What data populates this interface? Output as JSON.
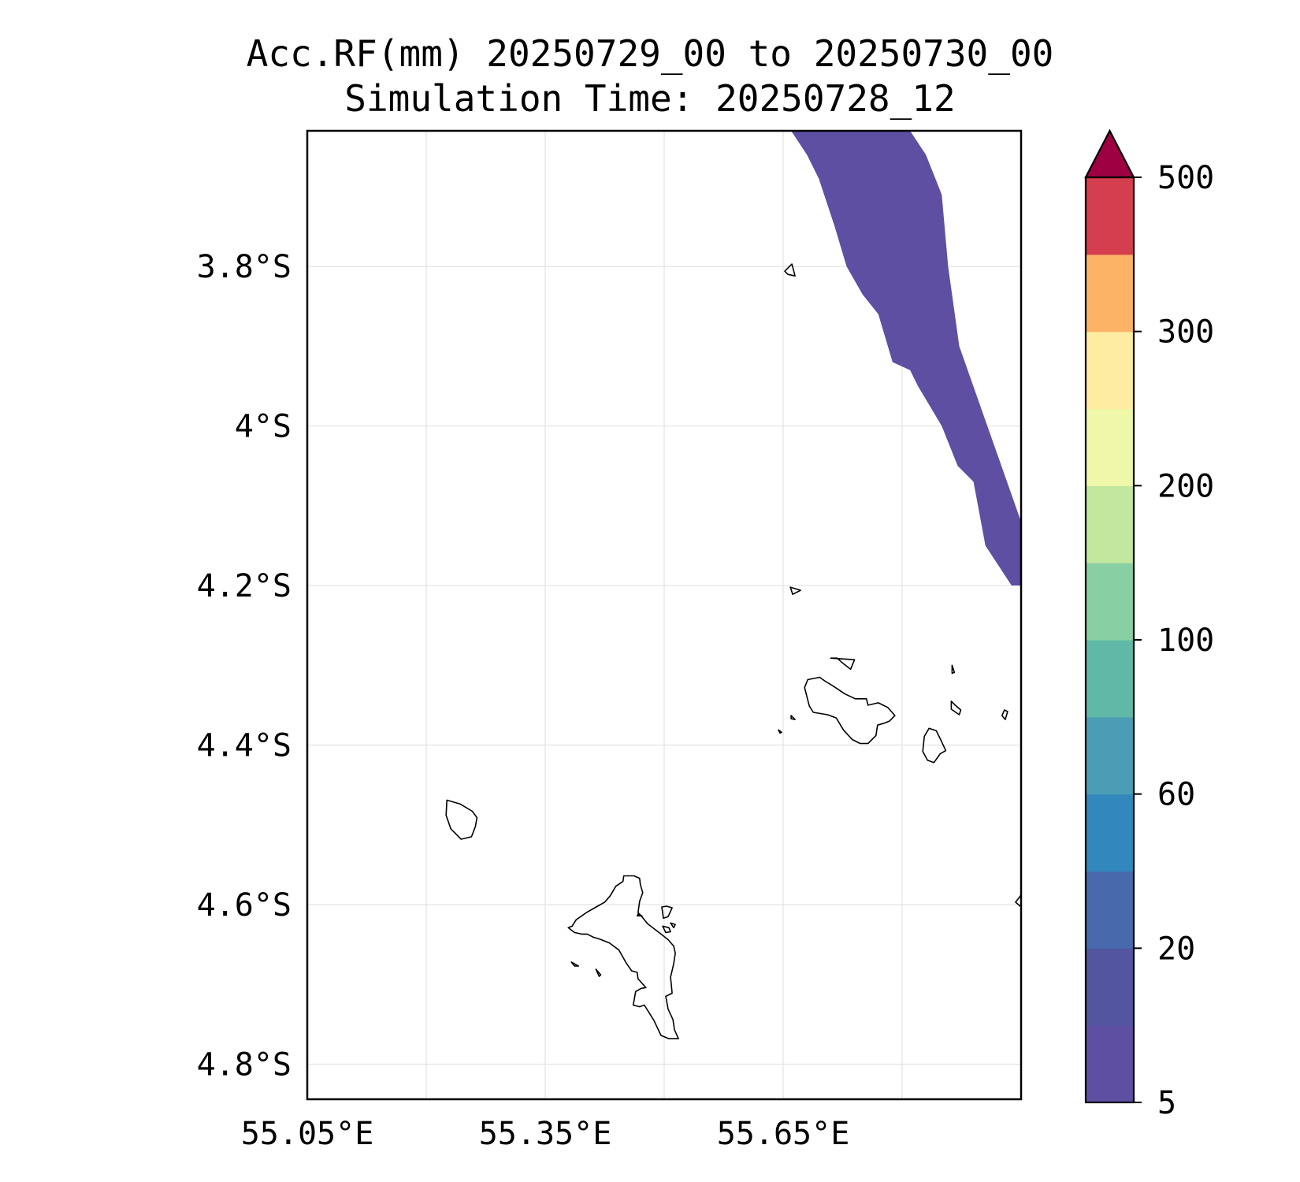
{
  "title": {
    "line1": "Acc.RF(mm) 20250729_00 to 20250730_00",
    "line2": "Simulation Time: 20250728_12"
  },
  "map": {
    "lon_range": [
      55.05,
      55.95
    ],
    "lat_range": [
      -4.844,
      -3.63
    ],
    "lat_ticks": [
      {
        "value": -3.8,
        "label": "3.8°S"
      },
      {
        "value": -4.0,
        "label": "4°S"
      },
      {
        "value": -4.2,
        "label": "4.2°S"
      },
      {
        "value": -4.4,
        "label": "4.4°S"
      },
      {
        "value": -4.6,
        "label": "4.6°S"
      },
      {
        "value": -4.8,
        "label": "4.8°S"
      }
    ],
    "lon_ticks": [
      {
        "value": 55.05,
        "label": "55.05°E"
      },
      {
        "value": 55.35,
        "label": "55.35°E"
      },
      {
        "value": 55.65,
        "label": "55.65°E"
      }
    ],
    "lon_grid": [
      55.05,
      55.2,
      55.35,
      55.5,
      55.65,
      55.8,
      55.95
    ],
    "lat_grid": [
      -3.8,
      -4.0,
      -4.2,
      -4.4,
      -4.6,
      -4.8
    ],
    "grid": true,
    "rain_area": {
      "level": "5-20 mm",
      "color": "#5e4fa2",
      "east_edge": [
        [
          55.66,
          -3.63
        ],
        [
          55.81,
          -3.63
        ],
        [
          55.83,
          -3.66
        ],
        [
          55.85,
          -3.71
        ],
        [
          55.858,
          -3.8
        ],
        [
          55.872,
          -3.9
        ],
        [
          55.95,
          -4.12
        ],
        [
          55.95,
          -4.2
        ],
        [
          55.938,
          -4.2
        ],
        [
          55.905,
          -4.15
        ],
        [
          55.89,
          -4.07
        ],
        [
          55.87,
          -4.05
        ],
        [
          55.85,
          -4.0
        ],
        [
          55.82,
          -3.95
        ],
        [
          55.81,
          -3.93
        ]
      ],
      "west_edge": [
        [
          55.66,
          -3.63
        ],
        [
          55.68,
          -3.66
        ],
        [
          55.695,
          -3.69
        ],
        [
          55.715,
          -3.75
        ],
        [
          55.73,
          -3.8
        ],
        [
          55.75,
          -3.835
        ],
        [
          55.77,
          -3.86
        ],
        [
          55.788,
          -3.92
        ],
        [
          55.81,
          -3.93
        ]
      ]
    },
    "coastlines": [
      {
        "name": "Mahe",
        "points": [
          [
            55.449,
            -4.564
          ],
          [
            55.462,
            -4.564
          ],
          [
            55.469,
            -4.567
          ],
          [
            55.47,
            -4.575
          ],
          [
            55.473,
            -4.585
          ],
          [
            55.469,
            -4.596
          ],
          [
            55.467,
            -4.61
          ],
          [
            55.471,
            -4.614
          ],
          [
            55.479,
            -4.624
          ],
          [
            55.496,
            -4.637
          ],
          [
            55.505,
            -4.644
          ],
          [
            55.512,
            -4.652
          ],
          [
            55.514,
            -4.661
          ],
          [
            55.512,
            -4.674
          ],
          [
            55.508,
            -4.691
          ],
          [
            55.51,
            -4.711
          ],
          [
            55.502,
            -4.715
          ],
          [
            55.505,
            -4.731
          ],
          [
            55.511,
            -4.744
          ],
          [
            55.513,
            -4.757
          ],
          [
            55.518,
            -4.768
          ],
          [
            55.506,
            -4.768
          ],
          [
            55.496,
            -4.764
          ],
          [
            55.487,
            -4.745
          ],
          [
            55.475,
            -4.726
          ],
          [
            55.469,
            -4.728
          ],
          [
            55.461,
            -4.726
          ],
          [
            55.464,
            -4.709
          ],
          [
            55.471,
            -4.705
          ],
          [
            55.477,
            -4.704
          ],
          [
            55.467,
            -4.693
          ],
          [
            55.466,
            -4.685
          ],
          [
            55.459,
            -4.683
          ],
          [
            55.452,
            -4.673
          ],
          [
            55.443,
            -4.657
          ],
          [
            55.431,
            -4.648
          ],
          [
            55.418,
            -4.643
          ],
          [
            55.411,
            -4.641
          ],
          [
            55.403,
            -4.637
          ],
          [
            55.396,
            -4.637
          ],
          [
            55.387,
            -4.635
          ],
          [
            55.379,
            -4.629
          ],
          [
            55.384,
            -4.627
          ],
          [
            55.389,
            -4.619
          ],
          [
            55.402,
            -4.61
          ],
          [
            55.416,
            -4.602
          ],
          [
            55.425,
            -4.597
          ],
          [
            55.432,
            -4.589
          ],
          [
            55.439,
            -4.577
          ],
          [
            55.448,
            -4.571
          ]
        ]
      },
      {
        "name": "Silhouette",
        "points": [
          [
            55.226,
            -4.469
          ],
          [
            55.243,
            -4.474
          ],
          [
            55.258,
            -4.483
          ],
          [
            55.264,
            -4.491
          ],
          [
            55.262,
            -4.502
          ],
          [
            55.257,
            -4.515
          ],
          [
            55.244,
            -4.518
          ],
          [
            55.231,
            -4.505
          ],
          [
            55.225,
            -4.488
          ]
        ]
      },
      {
        "name": "Praslin",
        "points": [
          [
            55.677,
            -4.328
          ],
          [
            55.681,
            -4.318
          ],
          [
            55.696,
            -4.315
          ],
          [
            55.703,
            -4.32
          ],
          [
            55.713,
            -4.326
          ],
          [
            55.728,
            -4.336
          ],
          [
            55.741,
            -4.342
          ],
          [
            55.755,
            -4.342
          ],
          [
            55.757,
            -4.35
          ],
          [
            55.77,
            -4.347
          ],
          [
            55.782,
            -4.353
          ],
          [
            55.791,
            -4.363
          ],
          [
            55.784,
            -4.37
          ],
          [
            55.776,
            -4.373
          ],
          [
            55.769,
            -4.375
          ],
          [
            55.767,
            -4.388
          ],
          [
            55.757,
            -4.398
          ],
          [
            55.747,
            -4.398
          ],
          [
            55.737,
            -4.393
          ],
          [
            55.726,
            -4.381
          ],
          [
            55.717,
            -4.366
          ],
          [
            55.706,
            -4.362
          ],
          [
            55.688,
            -4.359
          ],
          [
            55.683,
            -4.351
          ]
        ]
      },
      {
        "name": "La Digue",
        "points": [
          [
            55.834,
            -4.379
          ],
          [
            55.843,
            -4.382
          ],
          [
            55.849,
            -4.394
          ],
          [
            55.855,
            -4.407
          ],
          [
            55.848,
            -4.411
          ],
          [
            55.84,
            -4.422
          ],
          [
            55.832,
            -4.419
          ],
          [
            55.826,
            -4.408
          ],
          [
            55.828,
            -4.389
          ]
        ]
      },
      {
        "name": "Curieuse",
        "points": [
          [
            55.71,
            -4.291
          ],
          [
            55.74,
            -4.293
          ],
          [
            55.735,
            -4.305
          ],
          [
            55.726,
            -4.298
          ],
          [
            55.718,
            -4.291
          ]
        ]
      },
      {
        "name": "Aride",
        "points": [
          [
            55.659,
            -4.202
          ],
          [
            55.672,
            -4.206
          ],
          [
            55.662,
            -4.211
          ]
        ]
      },
      {
        "name": "North islet",
        "points": [
          [
            55.661,
            -3.797
          ],
          [
            55.665,
            -3.812
          ],
          [
            55.656,
            -3.81
          ],
          [
            55.652,
            -3.806
          ]
        ]
      },
      {
        "name": "Felicite",
        "points": [
          [
            55.862,
            -4.345
          ],
          [
            55.867,
            -4.35
          ],
          [
            55.874,
            -4.356
          ],
          [
            55.872,
            -4.362
          ],
          [
            55.862,
            -4.355
          ]
        ]
      },
      {
        "name": "Ile Coco",
        "points": [
          [
            55.863,
            -4.3
          ],
          [
            55.866,
            -4.309
          ],
          [
            55.863,
            -4.31
          ]
        ]
      },
      {
        "name": "Marianne",
        "points": [
          [
            55.929,
            -4.356
          ],
          [
            55.933,
            -4.358
          ],
          [
            55.93,
            -4.368
          ],
          [
            55.926,
            -4.363
          ]
        ]
      },
      {
        "name": "St Pierre",
        "points": [
          [
            55.66,
            -4.363
          ],
          [
            55.665,
            -4.368
          ],
          [
            55.66,
            -4.367
          ]
        ]
      },
      {
        "name": "Cousin",
        "points": [
          [
            55.644,
            -4.381
          ],
          [
            55.648,
            -4.384
          ],
          [
            55.646,
            -4.385
          ]
        ]
      },
      {
        "name": "Denis east",
        "points": [
          [
            55.95,
            -4.588
          ],
          [
            55.943,
            -4.597
          ],
          [
            55.95,
            -4.603
          ]
        ]
      },
      {
        "name": "Sainte Anne",
        "points": [
          [
            55.497,
            -4.603
          ],
          [
            55.503,
            -4.602
          ],
          [
            55.51,
            -4.604
          ],
          [
            55.505,
            -4.615
          ],
          [
            55.499,
            -4.617
          ]
        ]
      },
      {
        "name": "Cerf",
        "points": [
          [
            55.498,
            -4.627
          ],
          [
            55.506,
            -4.629
          ],
          [
            55.508,
            -4.634
          ],
          [
            55.502,
            -4.635
          ]
        ]
      },
      {
        "name": "Moyenne",
        "points": [
          [
            55.508,
            -4.623
          ],
          [
            55.514,
            -4.625
          ],
          [
            55.512,
            -4.629
          ]
        ]
      },
      {
        "name": "Therese",
        "points": [
          [
            55.383,
            -4.672
          ],
          [
            55.392,
            -4.677
          ],
          [
            55.387,
            -4.677
          ]
        ]
      },
      {
        "name": "Conception",
        "points": [
          [
            55.414,
            -4.681
          ],
          [
            55.42,
            -4.688
          ],
          [
            55.418,
            -4.69
          ]
        ]
      },
      {
        "name": "Mahe north cove",
        "points": [
          [
            55.467,
            -4.612
          ],
          [
            55.472,
            -4.614
          ],
          [
            55.466,
            -4.614
          ]
        ]
      }
    ]
  },
  "colorbar": {
    "labels": [
      "5",
      "20",
      "60",
      "100",
      "200",
      "300",
      "500"
    ],
    "colors": [
      "#5e4fa2",
      "#53559f",
      "#486aad",
      "#3288bd",
      "#4a9db4",
      "#5fb9a6",
      "#88cfa4",
      "#c2e79f",
      "#eff8a8",
      "#fdeca1",
      "#fdb366",
      "#d53e4f"
    ],
    "extend_color": "#9e0142"
  }
}
